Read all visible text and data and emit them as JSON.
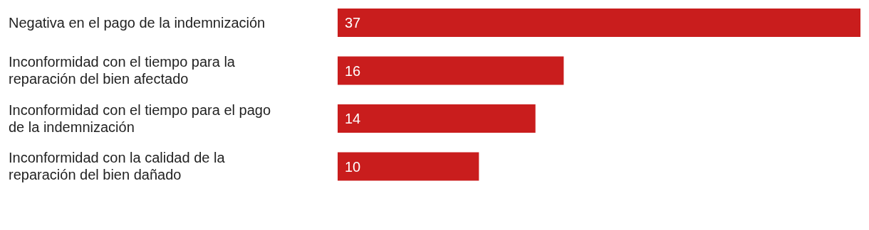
{
  "chart_data": {
    "type": "bar",
    "orientation": "horizontal",
    "categories": [
      "Negativa en el pago de la indemnización",
      "Inconformidad con el tiempo para la reparación del bien afectado",
      "Inconformidad con el tiempo para el pago de la indemnización",
      "Inconformidad con la calidad de la reparación del bien dañado"
    ],
    "values": [
      37,
      16,
      14,
      10
    ],
    "color": "#c91d1d",
    "data_labels": true
  }
}
